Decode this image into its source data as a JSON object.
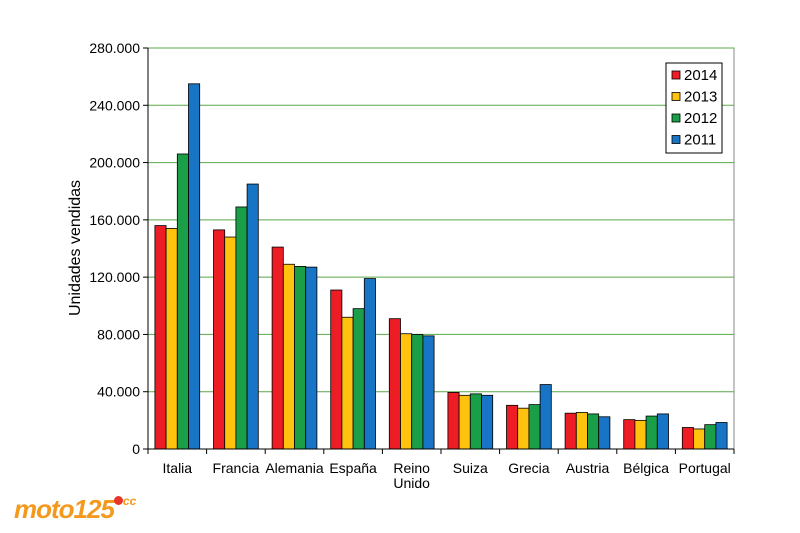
{
  "chart_data": {
    "type": "bar",
    "title": "",
    "xlabel": "",
    "ylabel": "Unidades vendidas",
    "ylim": [
      0,
      280000
    ],
    "yticks": [
      "0",
      "40.000",
      "80.000",
      "120.000",
      "160.000",
      "200.000",
      "240.000",
      "280.000"
    ],
    "ytick_values": [
      0,
      40000,
      80000,
      120000,
      160000,
      200000,
      240000,
      280000
    ],
    "grid": "horizontal",
    "legend_position": "top-right",
    "categories": [
      "Italia",
      "Francia",
      "Alemania",
      "España",
      "Reino Unido",
      "Suiza",
      "Grecia",
      "Austria",
      "Bélgica",
      "Portugal"
    ],
    "category_lines": [
      [
        "Italia"
      ],
      [
        "Francia"
      ],
      [
        "Alemania"
      ],
      [
        "España"
      ],
      [
        "Reino",
        "Unido"
      ],
      [
        "Suiza"
      ],
      [
        "Grecia"
      ],
      [
        "Austria"
      ],
      [
        "Bélgica"
      ],
      [
        "Portugal"
      ]
    ],
    "series": [
      {
        "name": "2014",
        "color": "#ee1c25",
        "values": [
          156000,
          153000,
          141000,
          111000,
          91000,
          39500,
          30500,
          25000,
          20500,
          15000
        ]
      },
      {
        "name": "2013",
        "color": "#ffc20e",
        "values": [
          154000,
          148000,
          129000,
          92000,
          80500,
          37500,
          28500,
          25500,
          20000,
          14000
        ]
      },
      {
        "name": "2012",
        "color": "#1a9e48",
        "values": [
          206000,
          169000,
          127500,
          98000,
          80000,
          38500,
          31000,
          24500,
          23000,
          17000
        ]
      },
      {
        "name": "2011",
        "color": "#1874c4",
        "values": [
          255000,
          185000,
          127000,
          119000,
          79000,
          37500,
          45000,
          22500,
          24500,
          18500
        ]
      }
    ]
  },
  "watermark": {
    "brand": "moto125",
    "suffix": "cc",
    "color": "#f39a1e"
  }
}
